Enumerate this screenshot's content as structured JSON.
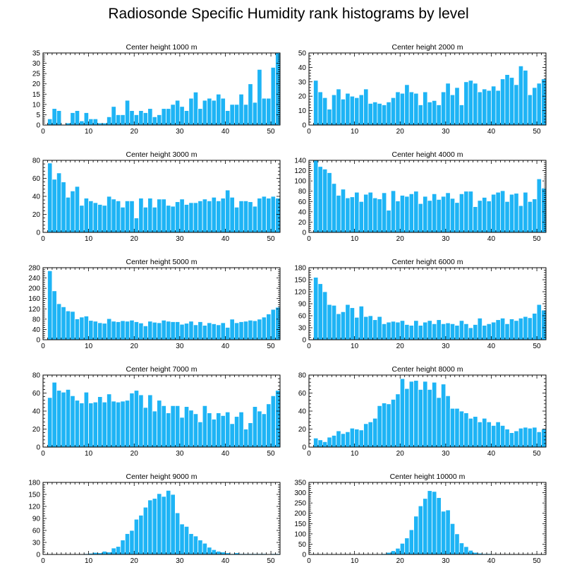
{
  "title": "Radiosonde Specific Humidity rank histograms by level",
  "colors": {
    "bar": "#1EB4F5",
    "bar_edge": "#ffffff",
    "axis": "#000000"
  },
  "chart_data": [
    {
      "type": "bar",
      "title": "Center height 1000 m",
      "xlim": [
        0,
        52
      ],
      "ylim": [
        0,
        35
      ],
      "xticks": [
        0,
        10,
        20,
        30,
        40,
        50
      ],
      "yticks": [
        0,
        5,
        10,
        15,
        20,
        25,
        30,
        35
      ],
      "x": [
        0,
        1,
        2,
        3,
        4,
        5,
        6,
        7,
        8,
        9,
        10,
        11,
        12,
        13,
        14,
        15,
        16,
        17,
        18,
        19,
        20,
        21,
        22,
        23,
        24,
        25,
        26,
        27,
        28,
        29,
        30,
        31,
        32,
        33,
        34,
        35,
        36,
        37,
        38,
        39,
        40,
        41,
        42,
        43,
        44,
        45,
        46,
        47,
        48,
        49,
        50,
        51
      ],
      "values": [
        0,
        3,
        8,
        7,
        0,
        1,
        6,
        7,
        2,
        6,
        3,
        3,
        1,
        1,
        4,
        9,
        5,
        5,
        12,
        7,
        5,
        7,
        6,
        8,
        4,
        5,
        8,
        8,
        10,
        12,
        9,
        7,
        13,
        16,
        8,
        12,
        13,
        12,
        15,
        13,
        7,
        10,
        10,
        15,
        10,
        20,
        11,
        27,
        13,
        13,
        28,
        35
      ]
    },
    {
      "type": "bar",
      "title": "Center height 2000 m",
      "xlim": [
        0,
        52
      ],
      "ylim": [
        0,
        50
      ],
      "xticks": [
        0,
        10,
        20,
        30,
        40,
        50
      ],
      "yticks": [
        0,
        10,
        20,
        30,
        40,
        50
      ],
      "x": [
        0,
        1,
        2,
        3,
        4,
        5,
        6,
        7,
        8,
        9,
        10,
        11,
        12,
        13,
        14,
        15,
        16,
        17,
        18,
        19,
        20,
        21,
        22,
        23,
        24,
        25,
        26,
        27,
        28,
        29,
        30,
        31,
        32,
        33,
        34,
        35,
        36,
        37,
        38,
        39,
        40,
        41,
        42,
        43,
        44,
        45,
        46,
        47,
        48,
        49,
        50,
        51
      ],
      "values": [
        0,
        31,
        23,
        19,
        11,
        21,
        25,
        18,
        22,
        20,
        19,
        21,
        25,
        15,
        16,
        15,
        14,
        16,
        19,
        23,
        22,
        28,
        23,
        22,
        14,
        23,
        16,
        17,
        14,
        23,
        29,
        21,
        26,
        14,
        30,
        31,
        29,
        23,
        25,
        24,
        27,
        24,
        32,
        35,
        33,
        28,
        41,
        38,
        21,
        26,
        29,
        32
      ]
    },
    {
      "type": "bar",
      "title": "Center height 3000 m",
      "xlim": [
        0,
        52
      ],
      "ylim": [
        0,
        80
      ],
      "xticks": [
        0,
        10,
        20,
        30,
        40,
        50
      ],
      "yticks": [
        0,
        20,
        40,
        60,
        80
      ],
      "x": [
        0,
        1,
        2,
        3,
        4,
        5,
        6,
        7,
        8,
        9,
        10,
        11,
        12,
        13,
        14,
        15,
        16,
        17,
        18,
        19,
        20,
        21,
        22,
        23,
        24,
        25,
        26,
        27,
        28,
        29,
        30,
        31,
        32,
        33,
        34,
        35,
        36,
        37,
        38,
        39,
        40,
        41,
        42,
        43,
        44,
        45,
        46,
        47,
        48,
        49,
        50,
        51
      ],
      "values": [
        0,
        77,
        59,
        66,
        56,
        39,
        46,
        51,
        30,
        38,
        35,
        33,
        31,
        30,
        40,
        37,
        35,
        28,
        35,
        35,
        16,
        38,
        28,
        38,
        28,
        37,
        37,
        30,
        29,
        34,
        37,
        31,
        33,
        33,
        35,
        37,
        35,
        39,
        35,
        38,
        47,
        39,
        28,
        35,
        35,
        34,
        29,
        38,
        40,
        38,
        40,
        38
      ]
    },
    {
      "type": "bar",
      "title": "Center height 4000 m",
      "xlim": [
        0,
        52
      ],
      "ylim": [
        0,
        140
      ],
      "xticks": [
        0,
        10,
        20,
        30,
        40,
        50
      ],
      "yticks": [
        0,
        20,
        40,
        60,
        80,
        100,
        120,
        140
      ],
      "x": [
        0,
        1,
        2,
        3,
        4,
        5,
        6,
        7,
        8,
        9,
        10,
        11,
        12,
        13,
        14,
        15,
        16,
        17,
        18,
        19,
        20,
        21,
        22,
        23,
        24,
        25,
        26,
        27,
        28,
        29,
        30,
        31,
        32,
        33,
        34,
        35,
        36,
        37,
        38,
        39,
        40,
        41,
        42,
        43,
        44,
        45,
        46,
        47,
        48,
        49,
        50,
        51
      ],
      "values": [
        0,
        140,
        128,
        123,
        116,
        95,
        72,
        84,
        67,
        69,
        78,
        60,
        74,
        78,
        67,
        65,
        77,
        43,
        81,
        61,
        72,
        70,
        75,
        80,
        56,
        70,
        62,
        75,
        64,
        70,
        77,
        66,
        58,
        75,
        80,
        80,
        50,
        62,
        68,
        61,
        74,
        78,
        81,
        60,
        74,
        76,
        52,
        78,
        60,
        65,
        104,
        86
      ]
    },
    {
      "type": "bar",
      "title": "Center height 5000 m",
      "xlim": [
        0,
        52
      ],
      "ylim": [
        0,
        280
      ],
      "xticks": [
        0,
        10,
        20,
        30,
        40,
        50
      ],
      "yticks": [
        0,
        40,
        80,
        120,
        160,
        200,
        240,
        280
      ],
      "x": [
        0,
        1,
        2,
        3,
        4,
        5,
        6,
        7,
        8,
        9,
        10,
        11,
        12,
        13,
        14,
        15,
        16,
        17,
        18,
        19,
        20,
        21,
        22,
        23,
        24,
        25,
        26,
        27,
        28,
        29,
        30,
        31,
        32,
        33,
        34,
        35,
        36,
        37,
        38,
        39,
        40,
        41,
        42,
        43,
        44,
        45,
        46,
        47,
        48,
        49,
        50,
        51
      ],
      "values": [
        0,
        268,
        190,
        140,
        128,
        112,
        110,
        81,
        88,
        92,
        75,
        72,
        66,
        64,
        82,
        72,
        70,
        74,
        72,
        76,
        70,
        65,
        54,
        72,
        68,
        66,
        76,
        72,
        70,
        70,
        60,
        64,
        72,
        58,
        70,
        56,
        66,
        62,
        58,
        66,
        48,
        80,
        66,
        70,
        72,
        76,
        74,
        80,
        88,
        100,
        118,
        126
      ]
    },
    {
      "type": "bar",
      "title": "Center height 6000 m",
      "xlim": [
        0,
        52
      ],
      "ylim": [
        0,
        180
      ],
      "xticks": [
        0,
        10,
        20,
        30,
        40,
        50
      ],
      "yticks": [
        0,
        30,
        60,
        90,
        120,
        150,
        180
      ],
      "x": [
        0,
        1,
        2,
        3,
        4,
        5,
        6,
        7,
        8,
        9,
        10,
        11,
        12,
        13,
        14,
        15,
        16,
        17,
        18,
        19,
        20,
        21,
        22,
        23,
        24,
        25,
        26,
        27,
        28,
        29,
        30,
        31,
        32,
        33,
        34,
        35,
        36,
        37,
        38,
        39,
        40,
        41,
        42,
        43,
        44,
        45,
        46,
        47,
        48,
        49,
        50,
        51
      ],
      "values": [
        0,
        156,
        140,
        120,
        88,
        86,
        65,
        70,
        88,
        80,
        56,
        84,
        58,
        60,
        50,
        58,
        40,
        44,
        46,
        44,
        48,
        38,
        36,
        48,
        36,
        44,
        48,
        40,
        50,
        40,
        42,
        40,
        36,
        48,
        40,
        30,
        38,
        54,
        36,
        40,
        44,
        50,
        54,
        40,
        52,
        48,
        54,
        58,
        55,
        66,
        88,
        74
      ]
    },
    {
      "type": "bar",
      "title": "Center height 7000 m",
      "xlim": [
        0,
        52
      ],
      "ylim": [
        0,
        80
      ],
      "xticks": [
        0,
        10,
        20,
        30,
        40,
        50
      ],
      "yticks": [
        0,
        20,
        40,
        60,
        80
      ],
      "x": [
        0,
        1,
        2,
        3,
        4,
        5,
        6,
        7,
        8,
        9,
        10,
        11,
        12,
        13,
        14,
        15,
        16,
        17,
        18,
        19,
        20,
        21,
        22,
        23,
        24,
        25,
        26,
        27,
        28,
        29,
        30,
        31,
        32,
        33,
        34,
        35,
        36,
        37,
        38,
        39,
        40,
        41,
        42,
        43,
        44,
        45,
        46,
        47,
        48,
        49,
        50,
        51
      ],
      "values": [
        0,
        55,
        72,
        63,
        61,
        64,
        57,
        52,
        49,
        61,
        49,
        50,
        56,
        50,
        59,
        51,
        50,
        51,
        52,
        60,
        63,
        58,
        44,
        58,
        40,
        52,
        46,
        38,
        46,
        46,
        33,
        45,
        41,
        37,
        28,
        46,
        38,
        31,
        38,
        35,
        39,
        26,
        34,
        39,
        20,
        27,
        45,
        40,
        37,
        48,
        57,
        63
      ]
    },
    {
      "type": "bar",
      "title": "Center height 8000 m",
      "xlim": [
        0,
        52
      ],
      "ylim": [
        0,
        80
      ],
      "xticks": [
        0,
        10,
        20,
        30,
        40,
        50
      ],
      "yticks": [
        0,
        20,
        40,
        60,
        80
      ],
      "x": [
        0,
        1,
        2,
        3,
        4,
        5,
        6,
        7,
        8,
        9,
        10,
        11,
        12,
        13,
        14,
        15,
        16,
        17,
        18,
        19,
        20,
        21,
        22,
        23,
        24,
        25,
        26,
        27,
        28,
        29,
        30,
        31,
        32,
        33,
        34,
        35,
        36,
        37,
        38,
        39,
        40,
        41,
        42,
        43,
        44,
        45,
        46,
        47,
        48,
        49,
        50,
        51
      ],
      "values": [
        0,
        10,
        8,
        6,
        11,
        13,
        18,
        15,
        17,
        21,
        20,
        19,
        26,
        28,
        32,
        46,
        49,
        48,
        53,
        59,
        76,
        65,
        73,
        74,
        64,
        73,
        64,
        72,
        55,
        70,
        57,
        43,
        43,
        40,
        38,
        32,
        34,
        28,
        32,
        28,
        24,
        28,
        24,
        20,
        16,
        18,
        21,
        22,
        21,
        22,
        17,
        20
      ]
    },
    {
      "type": "bar",
      "title": "Center height 9000 m",
      "xlim": [
        0,
        52
      ],
      "ylim": [
        0,
        180
      ],
      "xticks": [
        0,
        10,
        20,
        30,
        40,
        50
      ],
      "yticks": [
        0,
        30,
        60,
        90,
        120,
        150,
        180
      ],
      "x": [
        0,
        1,
        2,
        3,
        4,
        5,
        6,
        7,
        8,
        9,
        10,
        11,
        12,
        13,
        14,
        15,
        16,
        17,
        18,
        19,
        20,
        21,
        22,
        23,
        24,
        25,
        26,
        27,
        28,
        29,
        30,
        31,
        32,
        33,
        34,
        35,
        36,
        37,
        38,
        39,
        40,
        41,
        42,
        43,
        44,
        45,
        46,
        47,
        48,
        49,
        50,
        51
      ],
      "values": [
        0,
        0,
        0,
        0,
        0,
        0,
        0,
        0,
        0,
        2,
        3,
        5,
        4,
        8,
        6,
        16,
        20,
        36,
        52,
        60,
        88,
        98,
        118,
        136,
        140,
        152,
        145,
        160,
        150,
        104,
        76,
        70,
        52,
        46,
        36,
        28,
        18,
        12,
        8,
        6,
        4,
        2,
        4,
        2,
        2,
        2,
        2,
        2,
        2,
        1,
        2,
        2
      ]
    },
    {
      "type": "bar",
      "title": "Center height 10000 m",
      "xlim": [
        0,
        52
      ],
      "ylim": [
        0,
        350
      ],
      "xticks": [
        0,
        10,
        20,
        30,
        40,
        50
      ],
      "yticks": [
        0,
        50,
        100,
        150,
        200,
        250,
        300,
        350
      ],
      "x": [
        0,
        1,
        2,
        3,
        4,
        5,
        6,
        7,
        8,
        9,
        10,
        11,
        12,
        13,
        14,
        15,
        16,
        17,
        18,
        19,
        20,
        21,
        22,
        23,
        24,
        25,
        26,
        27,
        28,
        29,
        30,
        31,
        32,
        33,
        34,
        35,
        36,
        37,
        38,
        39,
        40,
        41,
        42,
        43,
        44,
        45,
        46,
        47,
        48,
        49,
        50,
        51
      ],
      "values": [
        0,
        0,
        0,
        0,
        0,
        0,
        0,
        0,
        0,
        0,
        0,
        0,
        0,
        0,
        0,
        2,
        4,
        10,
        18,
        30,
        54,
        80,
        120,
        186,
        236,
        272,
        310,
        306,
        276,
        210,
        216,
        150,
        100,
        56,
        38,
        20,
        10,
        6,
        4,
        4,
        2,
        2,
        2,
        2,
        2,
        2,
        1,
        2,
        1,
        0,
        0,
        2
      ]
    }
  ]
}
